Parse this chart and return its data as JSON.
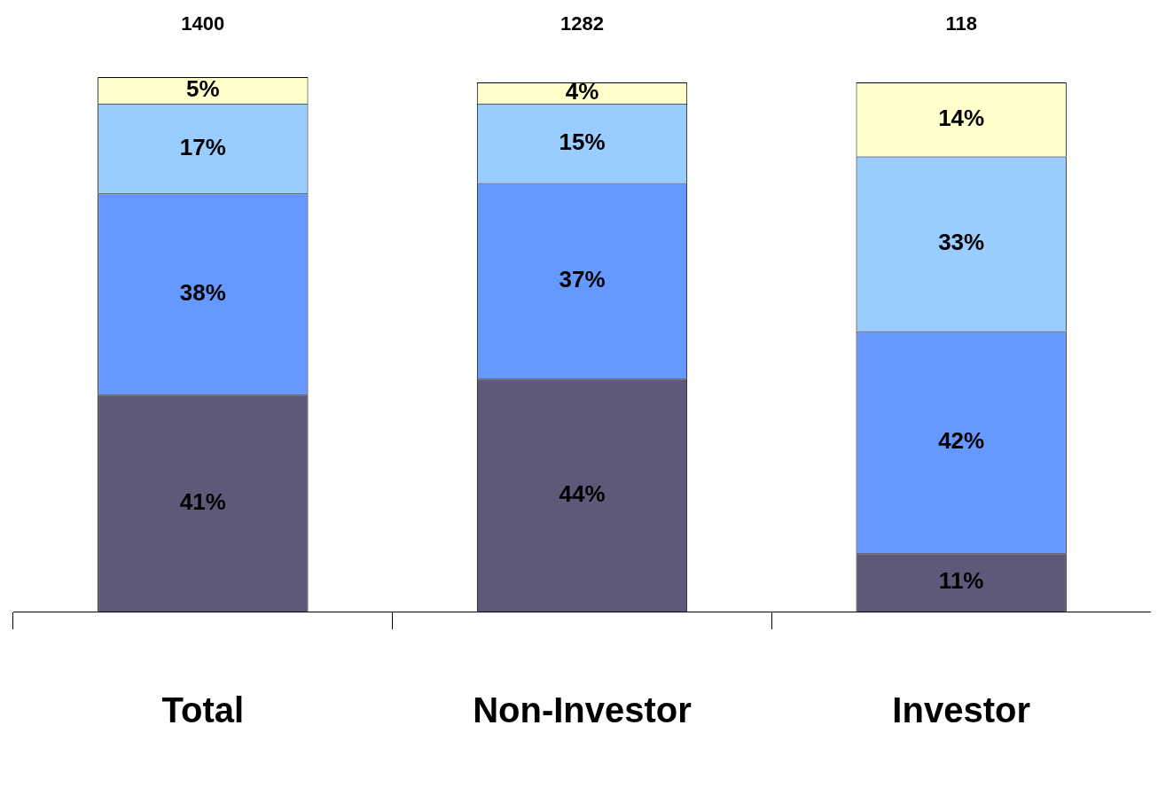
{
  "chart_data": {
    "type": "bar",
    "stacked": true,
    "categories": [
      "Total",
      "Non-Investor",
      "Investor"
    ],
    "series": [
      {
        "color": "#5f5878",
        "values": [
          41,
          44,
          11
        ],
        "value_labels": [
          "41%",
          "44%",
          "11%"
        ]
      },
      {
        "color": "#6699ff",
        "values": [
          38,
          37,
          42
        ],
        "value_labels": [
          "38%",
          "37%",
          "42%"
        ]
      },
      {
        "color": "#99ccff",
        "values": [
          17,
          15,
          33
        ],
        "value_labels": [
          "17%",
          "15%",
          "33%"
        ]
      },
      {
        "color": "#ffffcc",
        "values": [
          5,
          4,
          14
        ],
        "value_labels": [
          "5%",
          "4%",
          "14%"
        ]
      }
    ],
    "annotations": [
      "1400",
      "1282",
      "118"
    ],
    "grid": false,
    "legend": false
  }
}
